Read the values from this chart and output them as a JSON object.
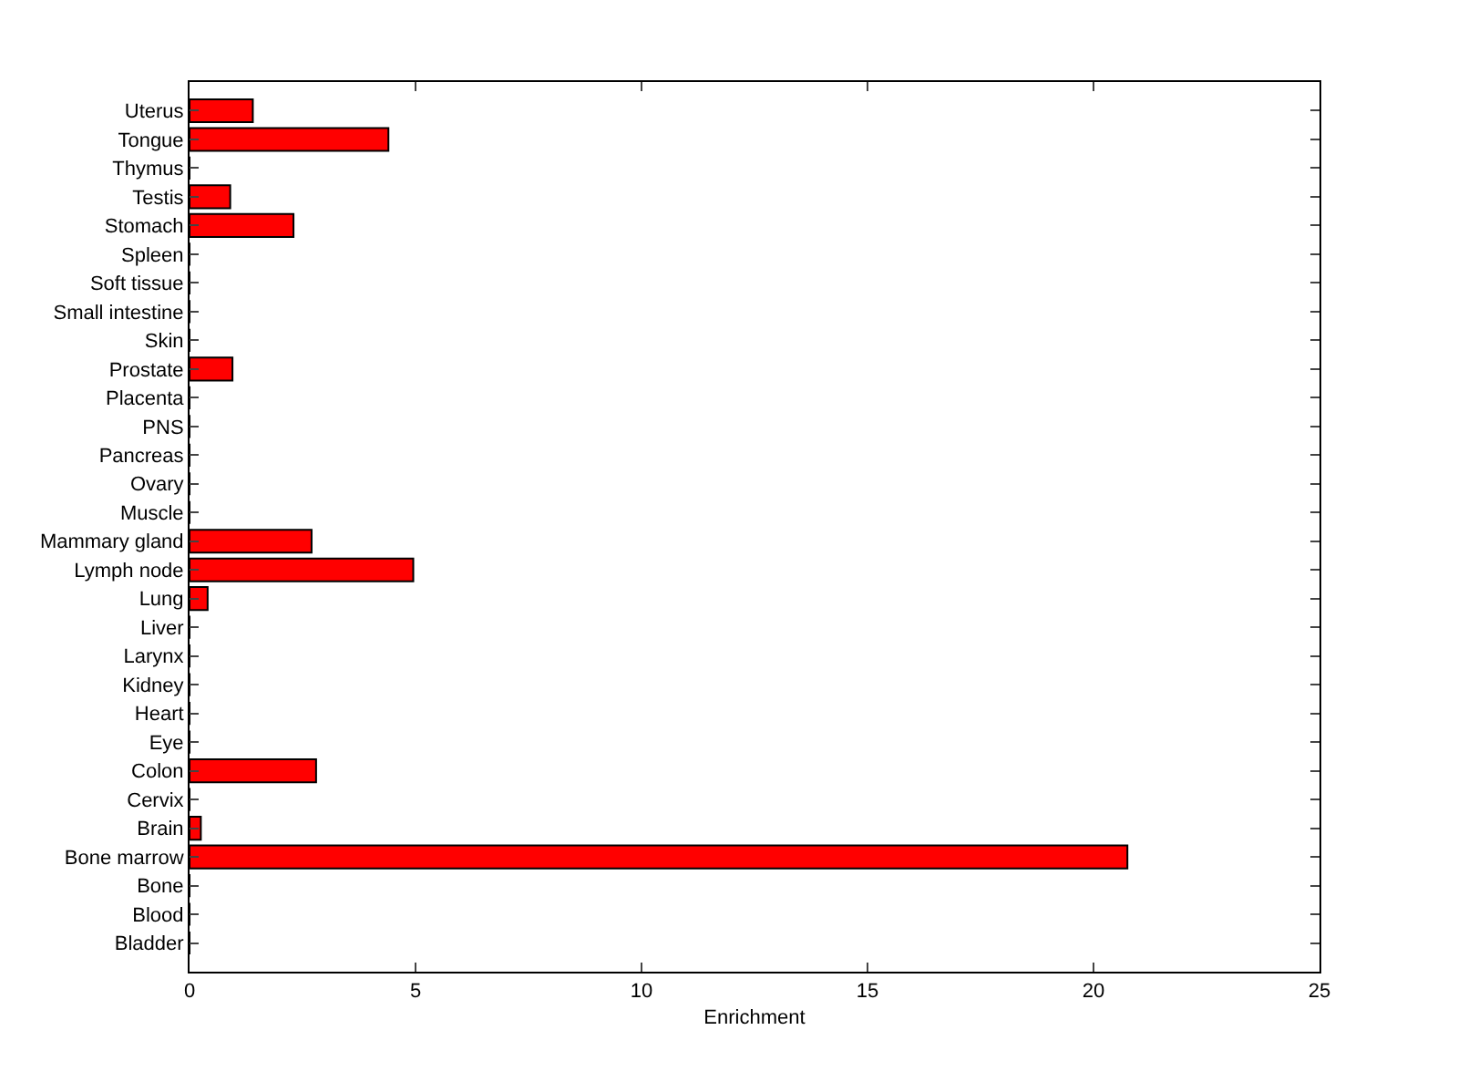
{
  "chart_data": {
    "type": "bar",
    "orientation": "horizontal",
    "xlabel": "Enrichment",
    "categories": [
      "Uterus",
      "Tongue",
      "Thymus",
      "Testis",
      "Stomach",
      "Spleen",
      "Soft tissue",
      "Small intestine",
      "Skin",
      "Prostate",
      "Placenta",
      "PNS",
      "Pancreas",
      "Ovary",
      "Muscle",
      "Mammary gland",
      "Lymph node",
      "Lung",
      "Liver",
      "Larynx",
      "Kidney",
      "Heart",
      "Eye",
      "Colon",
      "Cervix",
      "Brain",
      "Bone marrow",
      "Bone",
      "Blood",
      "Bladder"
    ],
    "values": [
      1.4,
      4.4,
      0,
      0.9,
      2.3,
      0,
      0,
      0,
      0,
      0.95,
      0,
      0,
      0,
      0,
      0,
      2.7,
      4.95,
      0.4,
      0,
      0,
      0,
      0,
      0,
      2.8,
      0,
      0.25,
      20.75,
      0,
      0,
      0
    ],
    "color": "#ff0000",
    "xlim": [
      0,
      25
    ],
    "xticks": [
      0,
      5,
      10,
      15,
      20,
      25
    ],
    "legend": false
  }
}
